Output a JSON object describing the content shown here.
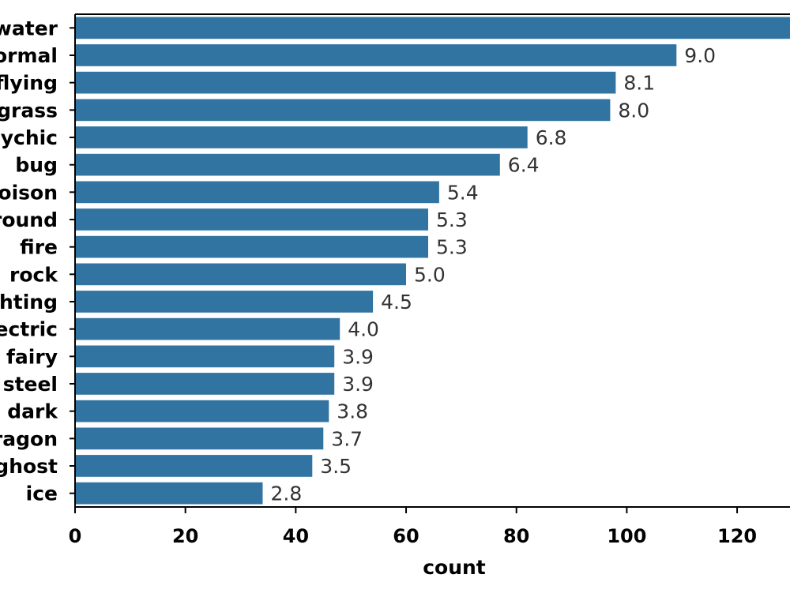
{
  "chart_data": {
    "type": "bar",
    "orientation": "horizontal",
    "categories": [
      "water",
      "normal",
      "flying",
      "grass",
      "psychic",
      "bug",
      "poison",
      "ground",
      "fire",
      "rock",
      "fighting",
      "electric",
      "fairy",
      "steel",
      "dark",
      "dragon",
      "ghost",
      "ice"
    ],
    "values": [
      132,
      109,
      98,
      97,
      82,
      77,
      66,
      64,
      64,
      60,
      54,
      48,
      47,
      47,
      46,
      45,
      43,
      34
    ],
    "data_labels": [
      "",
      "9.0",
      "8.1",
      "8.0",
      "6.8",
      "6.4",
      "5.4",
      "5.3",
      "5.3",
      "5.0",
      "4.5",
      "4.0",
      "3.9",
      "3.9",
      "3.8",
      "3.7",
      "3.5",
      "2.8"
    ],
    "xlabel": "count",
    "ylabel": "",
    "xticks": [
      0,
      20,
      40,
      60,
      80,
      100,
      120
    ],
    "xlim": [
      0,
      130
    ],
    "bar_color": "#3274a1",
    "grid": false
  }
}
